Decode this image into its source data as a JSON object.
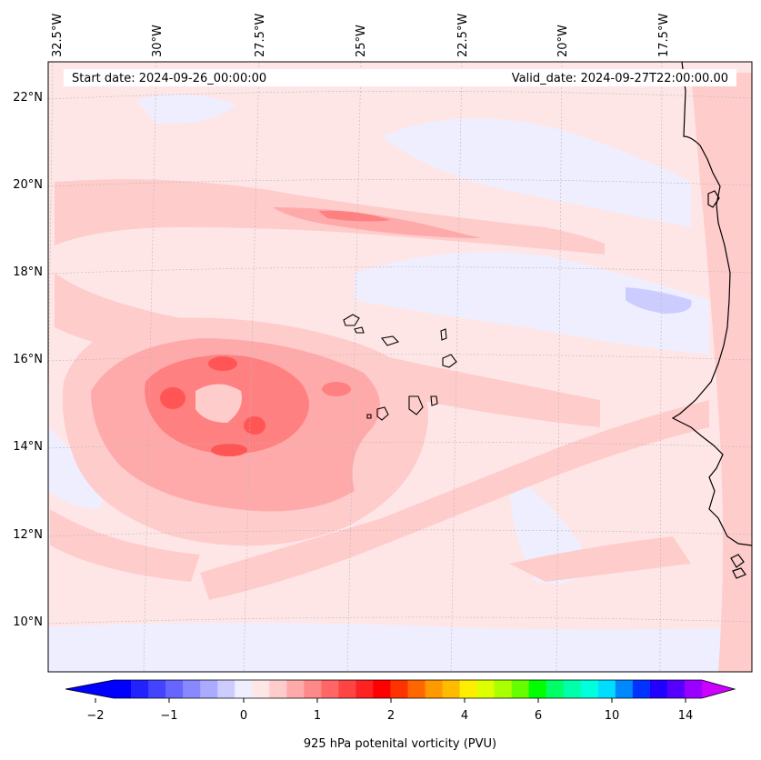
{
  "map": {
    "start_date_label": "Start date: 2024-09-26_00:00:00",
    "valid_date_label": "Valid_date: 2024-09-27T22:00:00.00",
    "lon_labels": [
      "32.5°W",
      "30°W",
      "27.5°W",
      "25°W",
      "22.5°W",
      "20°W",
      "17.5°W"
    ],
    "lat_labels": [
      "22°N",
      "20°N",
      "18°N",
      "16°N",
      "14°N",
      "12°N",
      "10°N"
    ],
    "colors": {
      "background_field": "#ffe6e6",
      "negative_weak": "#eeeeff",
      "negative_medium": "#ccccff",
      "positive_weak": "#ffcccc",
      "positive_medium": "#ffaaaa",
      "positive_strong": "#ff8080",
      "positive_max": "#ff5555",
      "coastline": "#000000"
    }
  },
  "colorbar": {
    "title": "925 hPa potenital vorticity (PVU)",
    "ticks": [
      "−2",
      "−1",
      "0",
      "1",
      "2",
      "4",
      "6",
      "10",
      "14"
    ],
    "colors": [
      "#0000ff",
      "#2222ff",
      "#4444ff",
      "#6666ff",
      "#8888ff",
      "#aaaaff",
      "#ccccff",
      "#eeeeff",
      "#ffe6e6",
      "#ffcccc",
      "#ffaaaa",
      "#ff8888",
      "#ff6666",
      "#ff4444",
      "#ff2222",
      "#ff0000",
      "#ff3300",
      "#ff6600",
      "#ff9900",
      "#ffbb00",
      "#ffee00",
      "#ddff00",
      "#aaff00",
      "#66ff00",
      "#00ff00",
      "#00ff66",
      "#00ffaa",
      "#00ffdd",
      "#00ddff",
      "#0088ff",
      "#0033ff",
      "#2200ff",
      "#5500ff",
      "#9900ff"
    ],
    "extend_left_color": "#0000ff",
    "extend_right_color": "#cc00ff"
  }
}
